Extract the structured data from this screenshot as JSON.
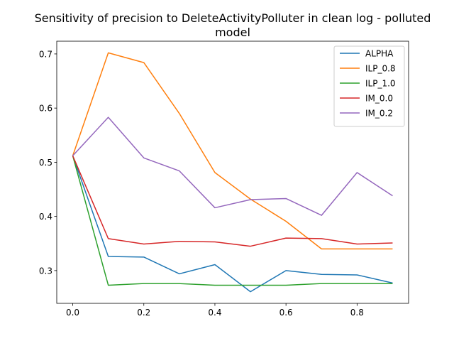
{
  "chart_data": {
    "type": "line",
    "title_line1": "Sensitivity of precision to DeleteActivityPolluter in clean log - polluted",
    "title_line2": "model",
    "xlabel": "",
    "ylabel": "",
    "xlim": [
      -0.045,
      0.945
    ],
    "ylim": [
      0.2395,
      0.7235
    ],
    "x_ticks": [
      0.0,
      0.2,
      0.4,
      0.6,
      0.8
    ],
    "x_tick_labels": [
      "0.0",
      "0.2",
      "0.4",
      "0.6",
      "0.8"
    ],
    "y_ticks": [
      0.3,
      0.4,
      0.5,
      0.6,
      0.7
    ],
    "y_tick_labels": [
      "0.3",
      "0.4",
      "0.5",
      "0.6",
      "0.7"
    ],
    "grid": false,
    "legend_position": "top-right",
    "x": [
      0.0,
      0.1,
      0.2,
      0.3,
      0.4,
      0.5,
      0.6,
      0.7,
      0.8,
      0.9
    ],
    "series": [
      {
        "name": "ALPHA",
        "color": "#1f77b4",
        "values": [
          0.512,
          0.326,
          0.325,
          0.294,
          0.311,
          0.261,
          0.3,
          0.293,
          0.292,
          0.277
        ]
      },
      {
        "name": "ILP_0.8",
        "color": "#ff7f0e",
        "values": [
          0.512,
          0.702,
          0.684,
          0.59,
          0.481,
          0.432,
          0.391,
          0.34,
          0.34,
          0.34
        ]
      },
      {
        "name": "ILP_1.0",
        "color": "#2ca02c",
        "values": [
          0.512,
          0.273,
          0.276,
          0.276,
          0.273,
          0.273,
          0.273,
          0.276,
          0.276,
          0.276
        ]
      },
      {
        "name": "IM_0.0",
        "color": "#d62728",
        "values": [
          0.512,
          0.359,
          0.349,
          0.354,
          0.353,
          0.345,
          0.36,
          0.359,
          0.349,
          0.351
        ]
      },
      {
        "name": "IM_0.2",
        "color": "#9467bd",
        "values": [
          0.512,
          0.583,
          0.508,
          0.484,
          0.416,
          0.431,
          0.433,
          0.402,
          0.481,
          0.438
        ]
      }
    ]
  }
}
